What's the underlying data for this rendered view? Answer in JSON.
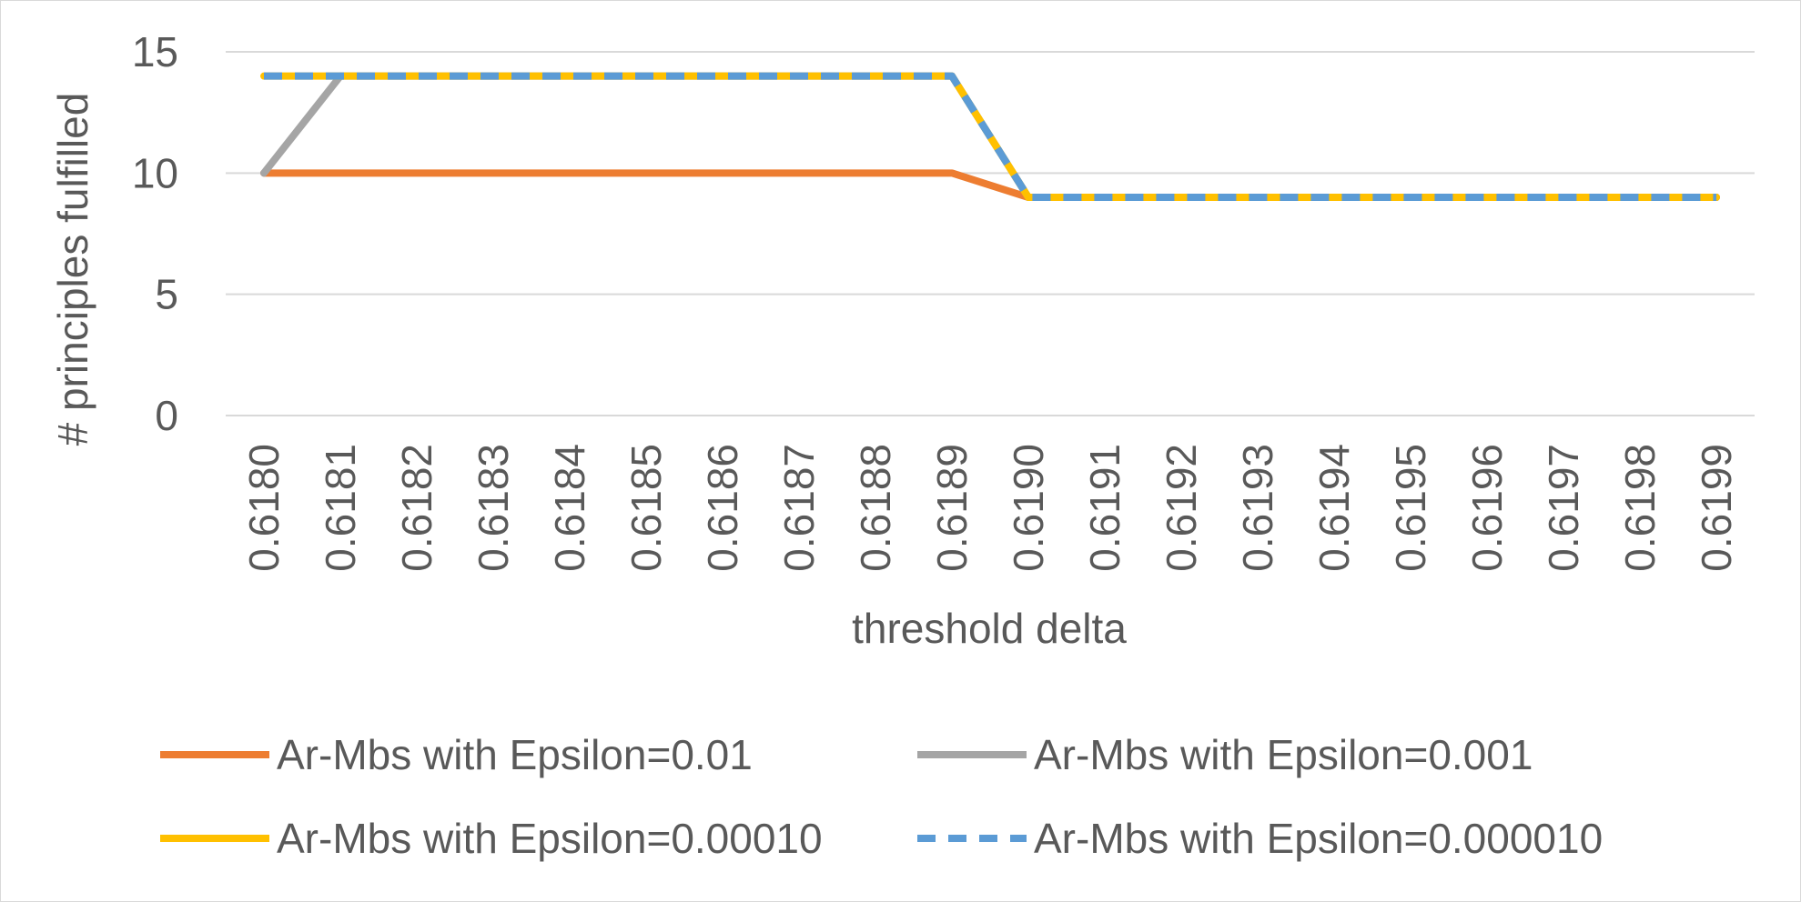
{
  "chart_data": {
    "type": "line",
    "title": "",
    "xlabel": "threshold delta",
    "ylabel": "# principles fulfilled",
    "ylim": [
      0,
      15
    ],
    "yticks": [
      "0",
      "5",
      "10",
      "15"
    ],
    "grid": true,
    "legend_position": "bottom",
    "categories": [
      "0.6180",
      "0.6181",
      "0.6182",
      "0.6183",
      "0.6184",
      "0.6185",
      "0.6186",
      "0.6187",
      "0.6188",
      "0.6189",
      "0.6190",
      "0.6191",
      "0.6192",
      "0.6193",
      "0.6194",
      "0.6195",
      "0.6196",
      "0.6197",
      "0.6198",
      "0.6199"
    ],
    "series": [
      {
        "name": "Ar-Mbs with Epsilon=0.01",
        "color": "#ed7d31",
        "dashed": false,
        "values": [
          10,
          10,
          10,
          10,
          10,
          10,
          10,
          10,
          10,
          10,
          9,
          9,
          9,
          9,
          9,
          9,
          9,
          9,
          9,
          9
        ]
      },
      {
        "name": "Ar-Mbs with Epsilon=0.001",
        "color": "#a5a5a5",
        "dashed": false,
        "values": [
          10,
          14,
          14,
          14,
          14,
          14,
          14,
          14,
          14,
          14,
          9,
          9,
          9,
          9,
          9,
          9,
          9,
          9,
          9,
          9
        ]
      },
      {
        "name": "Ar-Mbs with Epsilon=0.00010",
        "color": "#ffc000",
        "dashed": false,
        "values": [
          14,
          14,
          14,
          14,
          14,
          14,
          14,
          14,
          14,
          14,
          9,
          9,
          9,
          9,
          9,
          9,
          9,
          9,
          9,
          9
        ]
      },
      {
        "name": "Ar-Mbs with Epsilon=0.000010",
        "color": "#5b9bd5",
        "dashed": true,
        "values": [
          14,
          14,
          14,
          14,
          14,
          14,
          14,
          14,
          14,
          14,
          9,
          9,
          9,
          9,
          9,
          9,
          9,
          9,
          9,
          9
        ]
      }
    ]
  }
}
